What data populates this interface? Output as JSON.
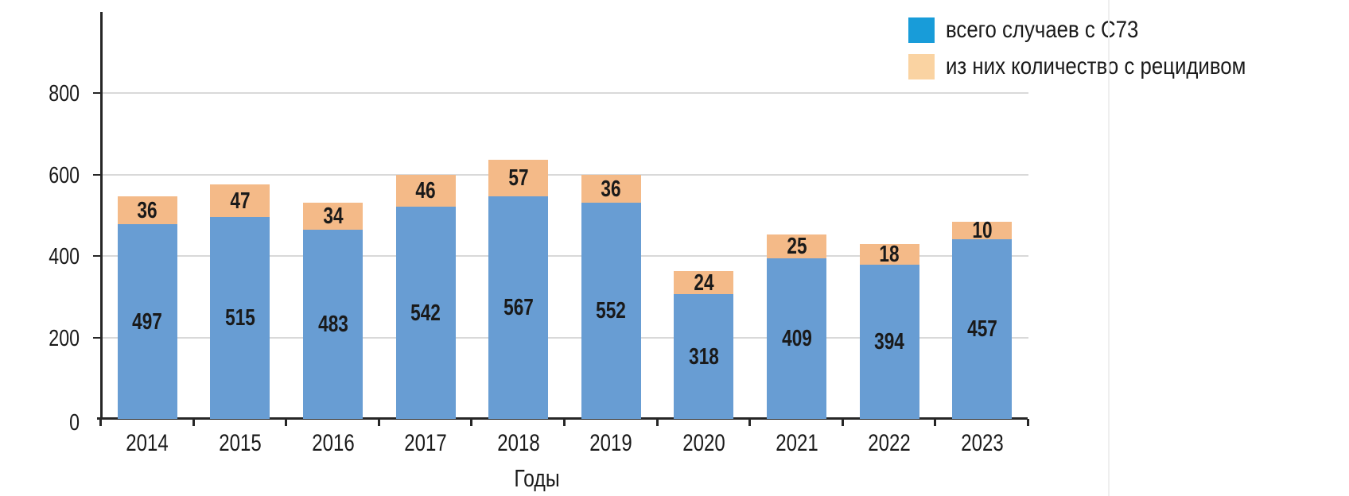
{
  "chart_data": {
    "type": "bar",
    "stacked": true,
    "title": "",
    "xlabel": "Годы",
    "ylabel": "",
    "categories": [
      "2014",
      "2015",
      "2016",
      "2017",
      "2018",
      "2019",
      "2020",
      "2021",
      "2022",
      "2023"
    ],
    "series": [
      {
        "name": "всего случаев с C73",
        "legend_color": "#189CD9",
        "bar_color": "#689DD3",
        "values": [
          497,
          515,
          483,
          542,
          567,
          552,
          318,
          409,
          394,
          457
        ]
      },
      {
        "name": "из них количество с рецидивом",
        "legend_color": "#FAD3A2",
        "bar_color": "#F4BA88",
        "values": [
          36,
          47,
          34,
          46,
          57,
          36,
          24,
          25,
          18,
          10
        ]
      }
    ],
    "y_ticks": [
      0,
      200,
      400,
      600,
      800
    ],
    "ylim": [
      0,
      1000
    ],
    "grid": true,
    "legend_position": "top-right",
    "colors": {
      "grid": "#D9D9D9",
      "axis": "#262626",
      "text": "#1A1A1A",
      "page_edge": "#EFEFEF"
    }
  }
}
